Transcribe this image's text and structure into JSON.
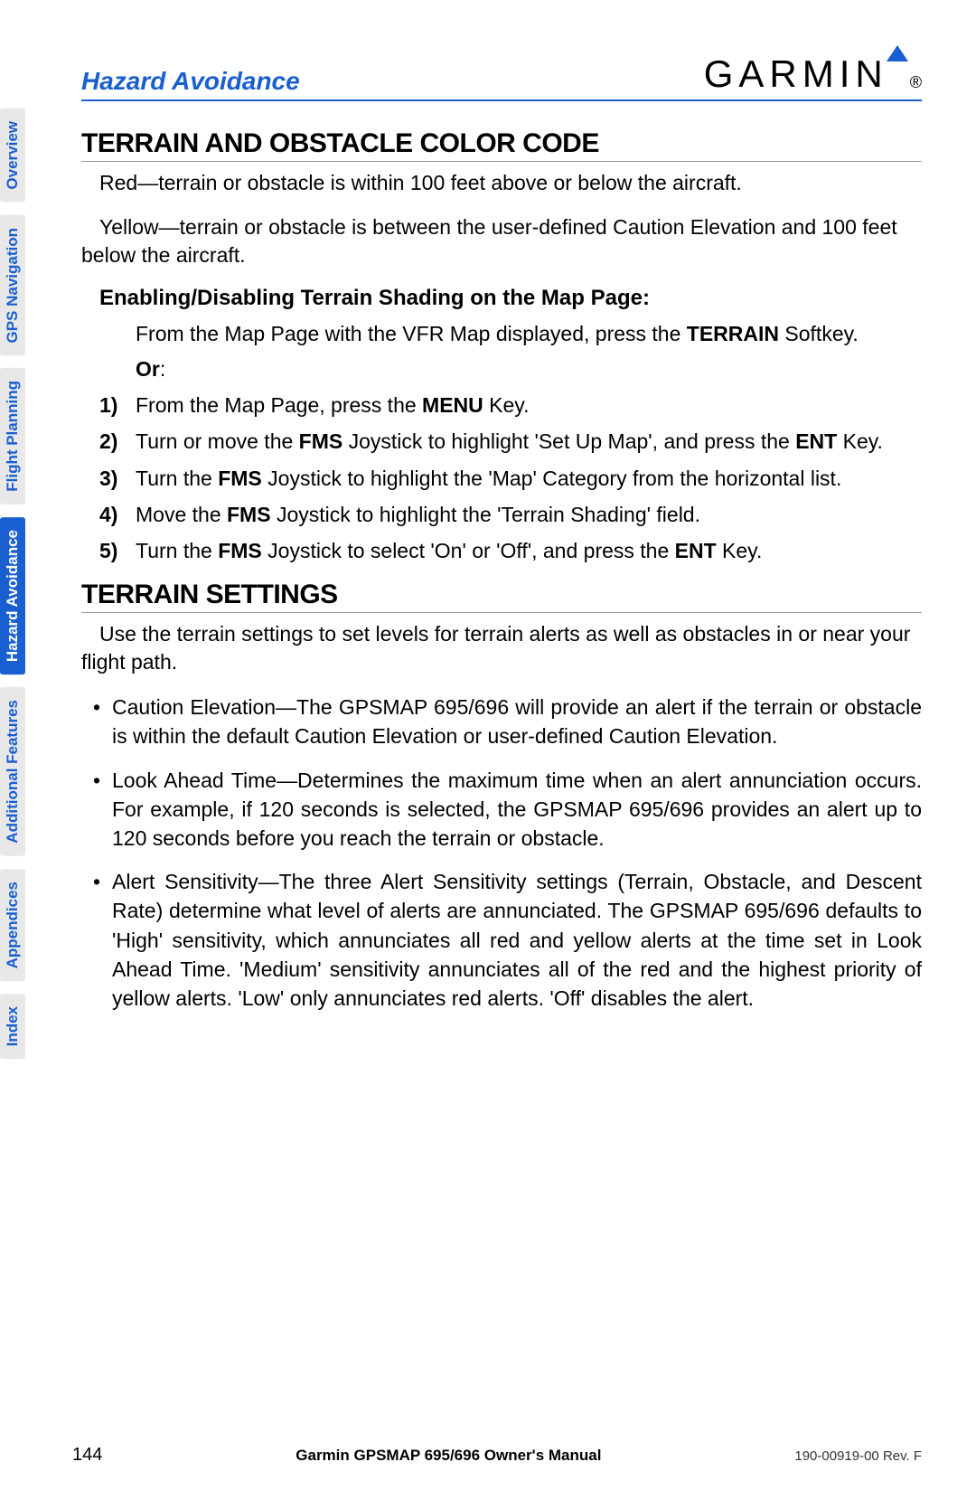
{
  "header": {
    "section": "Hazard Avoidance",
    "logo_text": "GARMIN"
  },
  "side_tabs": [
    {
      "label": "Overview",
      "active": false
    },
    {
      "label": "GPS Navigation",
      "active": false
    },
    {
      "label": "Flight Planning",
      "active": false
    },
    {
      "label": "Hazard Avoidance",
      "active": true
    },
    {
      "label": "Additional Features",
      "active": false
    },
    {
      "label": "Appendices",
      "active": false
    },
    {
      "label": "Index",
      "active": false
    }
  ],
  "sec1": {
    "title": "TERRAIN AND OBSTACLE COLOR CODE",
    "p1": "Red—terrain or obstacle is within 100 feet above or below the aircraft.",
    "p2": "Yellow—terrain or obstacle is between the user-defined Caution Elevation and 100 feet below the aircraft."
  },
  "sub": {
    "title": "Enabling/Disabling Terrain Shading on the Map Page:",
    "intro_a": "From the Map Page with the VFR Map displayed, press the ",
    "intro_b": "TERRAIN",
    "intro_c": " Softkey.",
    "or": "Or",
    "steps": [
      {
        "n": "1)",
        "a": "From the Map Page, press the ",
        "b": "MENU",
        "c": " Key."
      },
      {
        "n": "2)",
        "a": "Turn or move the ",
        "b": "FMS",
        "c": " Joystick to highlight 'Set Up Map', and press the ",
        "d": "ENT",
        "e": " Key."
      },
      {
        "n": "3)",
        "a": "Turn the ",
        "b": "FMS",
        "c": " Joystick to highlight the 'Map' Category from the horizontal list."
      },
      {
        "n": "4)",
        "a": "Move the ",
        "b": "FMS",
        "c": " Joystick to highlight the 'Terrain Shading' field."
      },
      {
        "n": "5)",
        "a": "Turn the ",
        "b": "FMS",
        "c": " Joystick to select 'On' or 'Off', and press the ",
        "d": "ENT",
        "e": " Key."
      }
    ]
  },
  "sec2": {
    "title": "TERRAIN SETTINGS",
    "p1": "Use the terrain settings to set levels for terrain alerts as well as obstacles in or near your flight path.",
    "bullets": [
      "Caution Elevation—The GPSMAP 695/696 will provide an alert if the terrain or obstacle is within the default Caution Elevation or user-defined Caution Elevation.",
      "Look Ahead Time—Determines the maximum time when an alert annunciation occurs.  For example, if 120 seconds is selected, the GPSMAP 695/696 provides an alert up to 120 seconds before you reach the terrain or obstacle.",
      "Alert Sensitivity—The three Alert Sensitivity settings (Terrain, Obstacle, and Descent Rate) determine what level of alerts are annunciated.  The GPSMAP 695/696 defaults to 'High' sensitivity, which annunciates all red and yellow alerts at the time set in Look Ahead Time.  'Medium' sensitivity annunciates all of the red and the highest priority of yellow alerts.  'Low' only annunciates red alerts.  'Off' disables the alert."
    ]
  },
  "footer": {
    "page": "144",
    "mid": "Garmin GPSMAP 695/696 Owner's Manual",
    "rev": "190-00919-00  Rev. F"
  }
}
